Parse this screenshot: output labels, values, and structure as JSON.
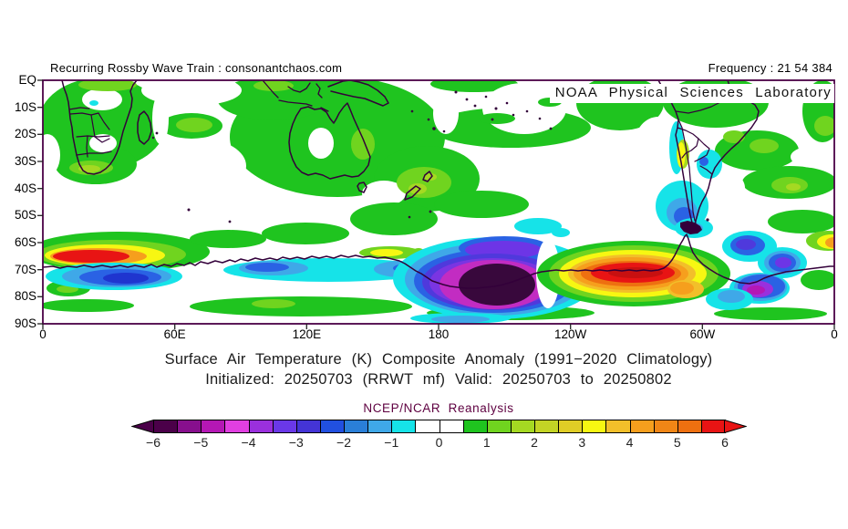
{
  "header": {
    "left_text": "Recurring Rossby Wave Train : consonantchaos.com",
    "right_text": "Frequency : 21 54 384",
    "org_label": "NOAA Physical Sciences Laboratory"
  },
  "axes": {
    "y_ticks": [
      "EQ",
      "10S",
      "20S",
      "30S",
      "40S",
      "50S",
      "60S",
      "70S",
      "80S",
      "90S"
    ],
    "x_ticks": [
      "0",
      "60E",
      "120E",
      "180",
      "120W",
      "60W",
      "0"
    ]
  },
  "caption": {
    "line1": "Surface Air Temperature (K) Composite Anomaly (1991−2020 Climatology)",
    "line2": "Initialized: 20250703 (RRWT mf) Valid: 20250703 to 20250802"
  },
  "colorbar": {
    "label": "NCEP/NCAR Reanalysis",
    "tick_labels": [
      "−6",
      "−5",
      "−4",
      "−3",
      "−2",
      "−1",
      "0",
      "1",
      "2",
      "3",
      "4",
      "5",
      "6"
    ],
    "tick_values": [
      -6,
      -5,
      -4,
      -3,
      -2,
      -1,
      0,
      1,
      2,
      3,
      4,
      5,
      6
    ],
    "cell_colors": [
      "#4b0049",
      "#870f8d",
      "#b517b5",
      "#e13fe1",
      "#9a30dd",
      "#6a38e8",
      "#4434d6",
      "#2150e0",
      "#2a7fd8",
      "#3fa8e8",
      "#16e3e8",
      "#ffffff",
      "#ffffff",
      "#1fc41f",
      "#70d41f",
      "#a5d922",
      "#c3d425",
      "#e0cd26",
      "#f7f712",
      "#f2bf2a",
      "#f69f1d",
      "#f08616",
      "#ee7010",
      "#e81414"
    ],
    "arrow_left_color": "#4b0049",
    "arrow_right_color": "#e81414"
  },
  "map_colors": {
    "frame": "#4a0045",
    "coastline": "#33003a",
    "ocean_background": "#ffffff",
    "mild_warm_green": "#1fc41f"
  },
  "map_features": [
    {
      "region": "0E-35E, 62S-67S (south of Africa)",
      "anomaly_K": "+5 to +6",
      "appearance": "red/orange warm core ringed by yellow and green"
    },
    {
      "region": "5E-50E, 68S-75S (Antarctic coast)",
      "anomaly_K": "-2 to -3",
      "appearance": "blue cold pocket with cyan rim"
    },
    {
      "region": "90E-180, 63S-72S",
      "anomaly_K": "-1 to -2",
      "appearance": "cyan/blue cold band along the coast"
    },
    {
      "region": "150E-140W, 68S-83S (Ross Sea)",
      "anomaly_K": "-6 and below",
      "appearance": "very dark purple cold core with magenta, violet, blue and cyan rings"
    },
    {
      "region": "110W-70W, 67S-75S (Amundsen/Bellingshausen)",
      "anomaly_K": "+5 to +6",
      "appearance": "dark red warm core ringed by orange, yellow, green"
    },
    {
      "region": "55W-15W, 57S-80S (Weddell Sea)",
      "anomaly_K": "-2 to -4",
      "appearance": "blue/violet cold pockets, magenta patch near coast"
    },
    {
      "region": "10W-0, 58S-63S",
      "anomaly_K": "+3 to +4",
      "appearance": "orange/yellow warm patch at right map edge"
    },
    {
      "region": "75W-65W, 20S-55S (Chile/Argentina)",
      "anomaly_K": "-1 to -2",
      "appearance": "cyan strip with embedded blue spots"
    },
    {
      "region": "68W-65W, 24S-33S (Altiplano)",
      "anomaly_K": "+3",
      "appearance": "narrow yellow warm strip"
    },
    {
      "region": "tropics and subtropics EQ-50S",
      "anomaly_K": "0 to +2",
      "appearance": "widespread light green with yellow-green patches, white near-zero gaps"
    }
  ]
}
